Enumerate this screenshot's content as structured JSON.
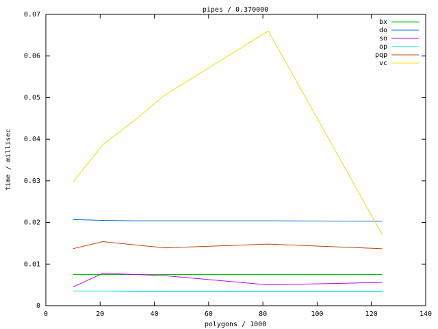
{
  "chart_data": {
    "type": "line",
    "title": "pipes / 0.370000",
    "x_label": "polygons / 1000",
    "y_label": "time / millisec",
    "x": [
      10,
      21,
      33,
      44,
      82,
      124
    ],
    "series": [
      {
        "name": "bx",
        "color": "#00c000",
        "values": [
          0.0075,
          0.0075,
          0.0075,
          0.0075,
          0.0075,
          0.0075
        ]
      },
      {
        "name": "do",
        "color": "#0070e0",
        "values": [
          0.0207,
          0.0205,
          0.0204,
          0.0204,
          0.0204,
          0.0203
        ]
      },
      {
        "name": "so",
        "color": "#c000ff",
        "values": [
          0.0045,
          0.0078,
          0.0075,
          0.0072,
          0.005,
          0.0056
        ]
      },
      {
        "name": "op",
        "color": "#00e0e0",
        "values": [
          0.0035,
          0.0035,
          0.0034,
          0.0034,
          0.0034,
          0.0034
        ]
      },
      {
        "name": "pqp",
        "color": "#c04000",
        "values": [
          0.0137,
          0.0154,
          0.0146,
          0.0139,
          0.0148,
          0.0137
        ]
      },
      {
        "name": "vc",
        "color": "#f0e000",
        "values": [
          0.0297,
          0.0387,
          0.0447,
          0.0507,
          0.066,
          0.0171
        ]
      }
    ],
    "xlim": [
      0,
      140
    ],
    "xticks": [
      0,
      20,
      40,
      60,
      80,
      100,
      120,
      140
    ],
    "ylim": [
      0,
      0.07
    ],
    "yticks": [
      0,
      0.01,
      0.02,
      0.03,
      0.04,
      0.05,
      0.06,
      0.07
    ],
    "legend": "top-right"
  }
}
